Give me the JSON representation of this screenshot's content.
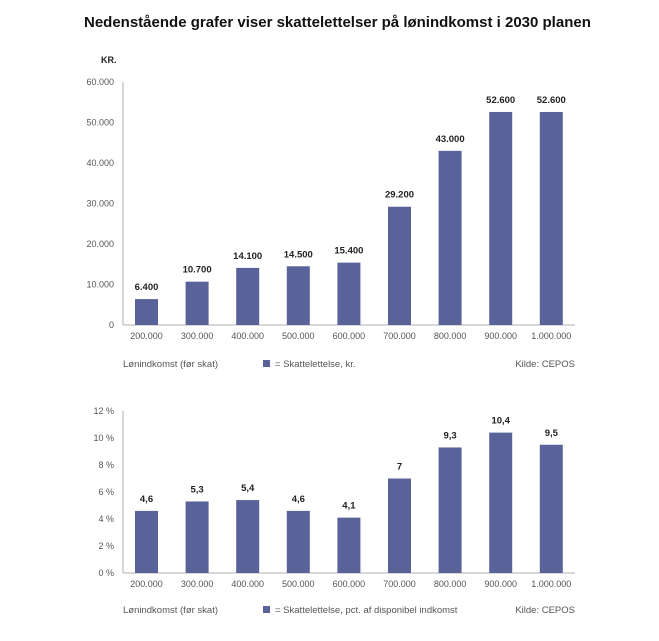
{
  "page": {
    "title": "Nedenstående grafer viser skattelettelser på lønindkomst i 2030 planen"
  },
  "chart_data": [
    {
      "type": "bar",
      "unit_label": "KR.",
      "categories": [
        "200.000",
        "300.000",
        "400.000",
        "500.000",
        "600.000",
        "700.000",
        "800.000",
        "900.000",
        "1.000.000"
      ],
      "values": [
        6400,
        10700,
        14100,
        14500,
        15400,
        29200,
        43000,
        52600,
        52600
      ],
      "value_labels": [
        "6.400",
        "10.700",
        "14.100",
        "14.500",
        "15.400",
        "29.200",
        "43.000",
        "52.600",
        "52.600"
      ],
      "y_ticks": [
        "0",
        "10.000",
        "20.000",
        "30.000",
        "40.000",
        "50.000",
        "60.000"
      ],
      "ylim": [
        0,
        60000
      ],
      "xlabel": "Lønindkomst (før skat)",
      "legend": "= Skattelettelse, kr.",
      "source": "Kilde: CEPOS",
      "bar_color": "#5a6399"
    },
    {
      "type": "bar",
      "categories": [
        "200.000",
        "300.000",
        "400.000",
        "500.000",
        "600.000",
        "700.000",
        "800.000",
        "900.000",
        "1.000.000"
      ],
      "values": [
        4.6,
        5.3,
        5.4,
        4.6,
        4.1,
        7,
        9.3,
        10.4,
        9.5
      ],
      "value_labels": [
        "4,6",
        "5,3",
        "5,4",
        "4,6",
        "4,1",
        "7",
        "9,3",
        "10,4",
        "9,5"
      ],
      "y_ticks": [
        "0 %",
        "2 %",
        "4 %",
        "6 %",
        "8 %",
        "10 %",
        "12 %"
      ],
      "ylim": [
        0,
        12
      ],
      "xlabel": "Lønindkomst (før skat)",
      "legend": "= Skattelettelse, pct. af disponibel indkomst",
      "source": "Kilde: CEPOS",
      "bar_color": "#5a6399"
    }
  ]
}
